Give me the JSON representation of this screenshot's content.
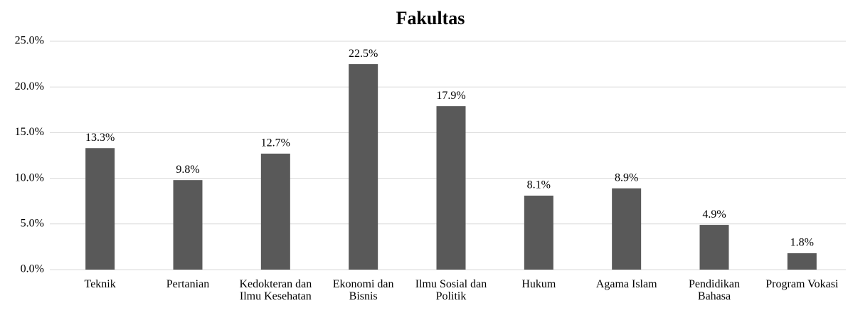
{
  "chart_data": {
    "type": "bar",
    "title": "Fakultas",
    "categories": [
      "Teknik",
      "Pertanian",
      "Kedokteran dan Ilmu Kesehatan",
      "Ekonomi dan Bisnis",
      "Ilmu Sosial dan Politik",
      "Hukum",
      "Agama Islam",
      "Pendidikan Bahasa",
      "Program Vokasi"
    ],
    "values": [
      13.3,
      9.8,
      12.7,
      22.5,
      17.9,
      8.1,
      8.9,
      4.9,
      1.8
    ],
    "value_labels": [
      "13.3%",
      "9.8%",
      "12.7%",
      "22.5%",
      "17.9%",
      "8.1%",
      "8.9%",
      "4.9%",
      "1.8%"
    ],
    "color": "#595959",
    "ylim": [
      0,
      25
    ],
    "yticks": [
      {
        "value": 0,
        "label": "0.0%"
      },
      {
        "value": 5,
        "label": "5.0%"
      },
      {
        "value": 10,
        "label": "10.0%"
      },
      {
        "value": 15,
        "label": "15.0%"
      },
      {
        "value": 20,
        "label": "20.0%"
      },
      {
        "value": 25,
        "label": "25.0%"
      }
    ],
    "grid": true
  }
}
